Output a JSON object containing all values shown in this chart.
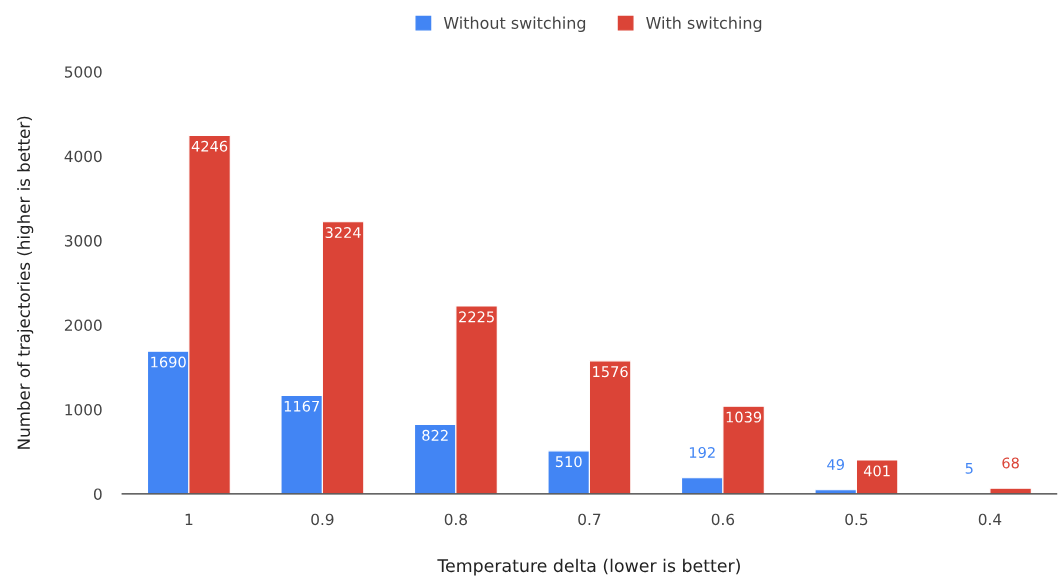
{
  "chart_data": {
    "type": "bar",
    "xlabel": "Temperature delta (lower is better)",
    "ylabel": "Number of trajectories (higher is better)",
    "categories": [
      "1",
      "0.9",
      "0.8",
      "0.7",
      "0.6",
      "0.5",
      "0.4"
    ],
    "series": [
      {
        "name": "Without switching",
        "color": "#4285f4",
        "values": [
          1690,
          1167,
          822,
          510,
          192,
          49,
          5
        ]
      },
      {
        "name": "With switching",
        "color": "#db4437",
        "values": [
          4246,
          3224,
          2225,
          1576,
          1039,
          401,
          68
        ]
      }
    ],
    "ylim": [
      0,
      5000
    ],
    "yticks": [
      0,
      1000,
      2000,
      3000,
      4000,
      5000
    ],
    "data_labels": true,
    "legend": "top",
    "grid": false
  }
}
